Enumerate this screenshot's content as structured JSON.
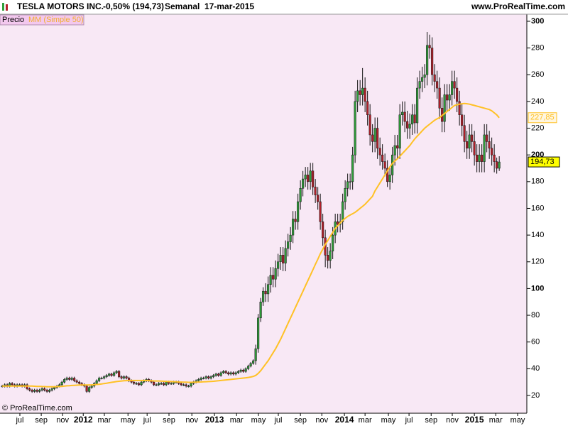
{
  "chart_data": {
    "type": "candlestick",
    "title": "TESLA MOTORS INC.",
    "change": "-0,50% (194,73)",
    "period": "Semanal",
    "date": "17-mar-2015",
    "source": "www.ProRealTime.com",
    "copyright": "© ProRealTime.com",
    "panel_label": "Precio",
    "ohlc": {
      "up_color": "#2f9e3a",
      "down_color": "#b3202a",
      "last_label": "194,73",
      "open": [
        27,
        27,
        28,
        27,
        29,
        28,
        27,
        28,
        28,
        27,
        28,
        25,
        24,
        23,
        24,
        23,
        24,
        25,
        24,
        23,
        24,
        25,
        26,
        27,
        28,
        30,
        32,
        33,
        32,
        33,
        31,
        30,
        29,
        28,
        27,
        23,
        26,
        27,
        29,
        31,
        33,
        33,
        34,
        35,
        36,
        35,
        37,
        38,
        34,
        33,
        34,
        33,
        31,
        30,
        29,
        29,
        28,
        30,
        31,
        32,
        31,
        30,
        28,
        28,
        29,
        29,
        28,
        30,
        29,
        29,
        30,
        30,
        29,
        28,
        28,
        27,
        27,
        29,
        30,
        31,
        32,
        33,
        33,
        34,
        33,
        34,
        35,
        36,
        35,
        37,
        38,
        37,
        36,
        37,
        36,
        37,
        38,
        39,
        38,
        40,
        42,
        44,
        46,
        55,
        78,
        90,
        98,
        96,
        103,
        110,
        107,
        115,
        120,
        125,
        119,
        130,
        135,
        140,
        152,
        150,
        165,
        175,
        182,
        185,
        180,
        188,
        176,
        170,
        165,
        150,
        138,
        125,
        121,
        128,
        140,
        150,
        148,
        150,
        165,
        175,
        180,
        180,
        200,
        240,
        248,
        245,
        250,
        240,
        230,
        215,
        210,
        220,
        205,
        200,
        195,
        190,
        180,
        185,
        200,
        207,
        205,
        230,
        232,
        225,
        220,
        223,
        230,
        224,
        250,
        255,
        258,
        260,
        282,
        280,
        260,
        255,
        250,
        235,
        225,
        245,
        241,
        245,
        255,
        250,
        240,
        230,
        222,
        210,
        205,
        215,
        210,
        200,
        195,
        200,
        195,
        215,
        210,
        205,
        200,
        195,
        190
      ],
      "high": [
        28,
        29,
        29,
        30,
        30,
        29,
        29,
        29,
        29,
        29,
        29,
        26,
        25,
        25,
        25,
        25,
        26,
        26,
        25,
        25,
        26,
        27,
        28,
        29,
        31,
        33,
        34,
        34,
        34,
        34,
        32,
        31,
        30,
        29,
        28,
        27,
        28,
        30,
        32,
        34,
        34,
        35,
        36,
        37,
        37,
        38,
        39,
        39,
        35,
        35,
        35,
        34,
        32,
        31,
        30,
        30,
        31,
        32,
        33,
        33,
        32,
        31,
        29,
        30,
        30,
        30,
        31,
        31,
        30,
        31,
        31,
        31,
        30,
        29,
        29,
        28,
        30,
        31,
        32,
        33,
        34,
        34,
        35,
        35,
        35,
        36,
        37,
        37,
        38,
        39,
        39,
        38,
        38,
        38,
        38,
        39,
        40,
        40,
        41,
        43,
        45,
        47,
        58,
        81,
        93,
        101,
        104,
        109,
        116,
        116,
        121,
        126,
        131,
        131,
        136,
        141,
        146,
        158,
        158,
        171,
        181,
        188,
        191,
        191,
        194,
        194,
        182,
        176,
        171,
        156,
        144,
        131,
        134,
        146,
        156,
        156,
        156,
        171,
        181,
        186,
        186,
        206,
        248,
        256,
        256,
        265,
        258,
        248,
        238,
        223,
        228,
        228,
        213,
        208,
        201,
        196,
        191,
        206,
        215,
        215,
        238,
        240,
        240,
        233,
        231,
        238,
        238,
        258,
        263,
        266,
        268,
        292,
        290,
        288,
        268,
        263,
        258,
        243,
        253,
        253,
        253,
        263,
        263,
        258,
        248,
        238,
        230,
        218,
        223,
        223,
        218,
        208,
        208,
        208,
        223,
        223,
        218,
        213,
        208,
        198,
        199
      ],
      "low": [
        26,
        26,
        26,
        26,
        27,
        26,
        26,
        27,
        26,
        26,
        24,
        23,
        22,
        22,
        22,
        22,
        23,
        23,
        22,
        22,
        23,
        24,
        25,
        26,
        27,
        29,
        31,
        31,
        31,
        30,
        29,
        28,
        27,
        26,
        22,
        22,
        25,
        26,
        28,
        30,
        32,
        32,
        33,
        34,
        34,
        34,
        36,
        33,
        32,
        32,
        32,
        30,
        29,
        28,
        28,
        27,
        27,
        29,
        30,
        30,
        29,
        27,
        27,
        27,
        28,
        27,
        27,
        28,
        28,
        28,
        29,
        28,
        27,
        27,
        26,
        26,
        26,
        28,
        29,
        30,
        31,
        32,
        32,
        32,
        32,
        33,
        34,
        34,
        34,
        36,
        36,
        35,
        35,
        35,
        35,
        36,
        37,
        37,
        37,
        39,
        41,
        43,
        43,
        52,
        75,
        87,
        90,
        90,
        97,
        101,
        101,
        109,
        114,
        113,
        113,
        124,
        129,
        134,
        144,
        144,
        159,
        169,
        176,
        174,
        174,
        170,
        164,
        159,
        144,
        132,
        116,
        115,
        115,
        122,
        134,
        142,
        142,
        144,
        159,
        169,
        174,
        174,
        194,
        232,
        237,
        237,
        232,
        222,
        207,
        202,
        202,
        197,
        192,
        189,
        184,
        176,
        174,
        179,
        192,
        197,
        197,
        222,
        217,
        212,
        212,
        215,
        216,
        216,
        242,
        247,
        250,
        252,
        272,
        252,
        247,
        242,
        227,
        217,
        217,
        233,
        233,
        237,
        242,
        232,
        222,
        214,
        202,
        197,
        197,
        202,
        192,
        187,
        187,
        187,
        187,
        202,
        197,
        192,
        187,
        186,
        188
      ],
      "close": [
        27,
        28,
        27,
        29,
        28,
        27,
        28,
        28,
        27,
        28,
        25,
        24,
        23,
        24,
        23,
        24,
        25,
        24,
        23,
        24,
        25,
        26,
        27,
        28,
        30,
        32,
        33,
        32,
        33,
        31,
        30,
        29,
        28,
        27,
        23,
        26,
        27,
        29,
        31,
        33,
        33,
        34,
        35,
        36,
        35,
        37,
        38,
        34,
        33,
        34,
        33,
        31,
        30,
        29,
        29,
        28,
        30,
        31,
        32,
        31,
        30,
        28,
        28,
        29,
        29,
        28,
        30,
        29,
        29,
        30,
        30,
        29,
        28,
        28,
        27,
        27,
        29,
        30,
        31,
        32,
        33,
        33,
        34,
        33,
        34,
        35,
        36,
        35,
        37,
        38,
        37,
        36,
        37,
        36,
        37,
        38,
        39,
        38,
        40,
        42,
        44,
        46,
        55,
        78,
        90,
        98,
        96,
        103,
        110,
        107,
        115,
        120,
        125,
        119,
        130,
        135,
        140,
        152,
        150,
        165,
        175,
        182,
        185,
        180,
        188,
        176,
        170,
        165,
        150,
        138,
        125,
        121,
        128,
        140,
        150,
        148,
        150,
        165,
        175,
        180,
        180,
        200,
        240,
        248,
        245,
        250,
        240,
        230,
        215,
        210,
        220,
        205,
        200,
        195,
        190,
        180,
        185,
        200,
        207,
        205,
        230,
        232,
        225,
        220,
        223,
        230,
        224,
        250,
        255,
        258,
        260,
        282,
        280,
        260,
        255,
        250,
        235,
        225,
        245,
        241,
        245,
        255,
        250,
        240,
        230,
        222,
        210,
        205,
        215,
        210,
        200,
        195,
        200,
        195,
        215,
        210,
        205,
        200,
        195,
        190,
        194.73
      ]
    },
    "sma": {
      "name": "MM (Simple 50)",
      "color": "#ffc125",
      "last_label": "227,85",
      "values": [
        27,
        27,
        27,
        27,
        27,
        27,
        27,
        27,
        27,
        27,
        27,
        27,
        27,
        26.9,
        26.8,
        26.8,
        26.7,
        26.6,
        26.5,
        26.5,
        26.5,
        26.5,
        26.6,
        26.7,
        26.8,
        27,
        27.2,
        27.3,
        27.5,
        27.6,
        27.7,
        27.8,
        27.8,
        27.8,
        27.8,
        27.8,
        27.9,
        28,
        28.2,
        28.4,
        28.6,
        28.9,
        29.2,
        29.5,
        29.8,
        30.1,
        30.4,
        30.6,
        30.8,
        31,
        31.1,
        31.2,
        31.2,
        31.2,
        31.2,
        31.2,
        31.2,
        31.2,
        31.2,
        31.1,
        31,
        30.9,
        30.8,
        30.8,
        30.7,
        30.6,
        30.5,
        30.4,
        30.4,
        30.3,
        30.2,
        30.1,
        30,
        29.9,
        29.9,
        29.8,
        29.8,
        29.9,
        29.9,
        30,
        30.1,
        30.2,
        30.3,
        30.4,
        30.5,
        30.6,
        30.8,
        31,
        31.2,
        31.4,
        31.6,
        31.8,
        32,
        32.2,
        32.4,
        32.6,
        32.8,
        33,
        33.2,
        33.5,
        33.8,
        34.2,
        35,
        36.5,
        38.5,
        41,
        43.5,
        46,
        49,
        52,
        55,
        58.5,
        62,
        66,
        70,
        74,
        78,
        82,
        86,
        90,
        94,
        98,
        102,
        106,
        110,
        114,
        118,
        122,
        126,
        129.5,
        133,
        136,
        139,
        142,
        145,
        147,
        149,
        151,
        152.5,
        154,
        155,
        156,
        157,
        158.5,
        160,
        161.5,
        163,
        165,
        167,
        169,
        173,
        176,
        179,
        182,
        185,
        188,
        191,
        193.5,
        195.5,
        197,
        199,
        201,
        203,
        205,
        207,
        209.5,
        212,
        214,
        216,
        218,
        220,
        221.5,
        223,
        224.5,
        226,
        227,
        228,
        229.5,
        231,
        232.5,
        234,
        235.5,
        237,
        237.5,
        238,
        238.3,
        238.5,
        238.3,
        238,
        237.5,
        237,
        236.5,
        236,
        235.5,
        235,
        234.5,
        234,
        233,
        231.5,
        230,
        227.85
      ]
    },
    "ylim": [
      6.7,
      305.3
    ],
    "yticks": [
      20,
      40,
      60,
      80,
      100,
      120,
      140,
      160,
      180,
      200,
      220,
      240,
      260,
      280,
      300
    ],
    "xlim": [
      -0.9,
      211.1
    ],
    "xticks": [
      {
        "value": 7.1,
        "label": "jul"
      },
      {
        "value": 15.7,
        "label": "sep"
      },
      {
        "value": 24.3,
        "label": "nov"
      },
      {
        "value": 32.6,
        "label": "2012"
      },
      {
        "value": 41.1,
        "label": "mar"
      },
      {
        "value": 50.6,
        "label": "may"
      },
      {
        "value": 58.3,
        "label": "jul"
      },
      {
        "value": 67.1,
        "label": "sep"
      },
      {
        "value": 76.3,
        "label": "nov"
      },
      {
        "value": 85.4,
        "label": "2013"
      },
      {
        "value": 94.3,
        "label": "mar"
      },
      {
        "value": 103.1,
        "label": "may"
      },
      {
        "value": 111.1,
        "label": "jul"
      },
      {
        "value": 120,
        "label": "sep"
      },
      {
        "value": 128.6,
        "label": "nov"
      },
      {
        "value": 137.7,
        "label": "2014"
      },
      {
        "value": 146,
        "label": "mar"
      },
      {
        "value": 155.4,
        "label": "may"
      },
      {
        "value": 163.7,
        "label": "jul"
      },
      {
        "value": 172.6,
        "label": "sep"
      },
      {
        "value": 181.1,
        "label": "nov"
      },
      {
        "value": 190,
        "label": "2015"
      },
      {
        "value": 198.6,
        "label": "mar"
      },
      {
        "value": 207.4,
        "label": "may"
      }
    ]
  }
}
